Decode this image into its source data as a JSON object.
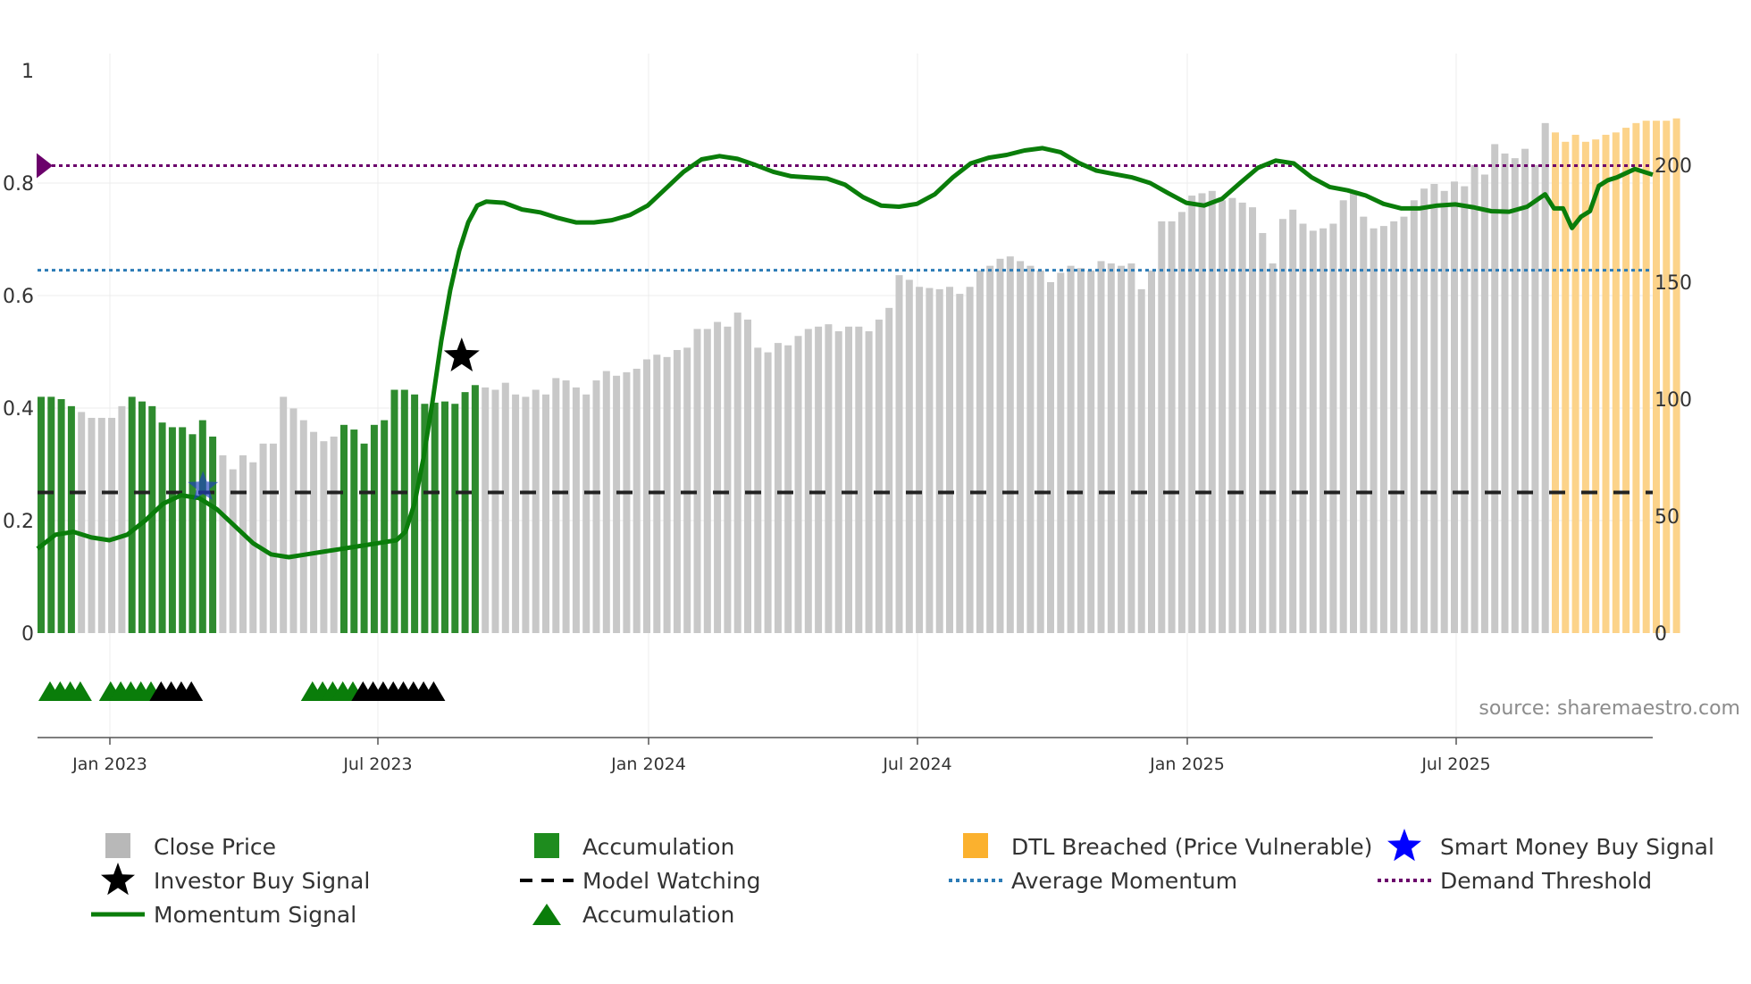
{
  "chart_data": {
    "type": "bar",
    "y_left": {
      "range": [
        0,
        1
      ],
      "ticks": [
        "0",
        "0.2",
        "0.4",
        "0.6",
        "0.8",
        "1"
      ]
    },
    "y_right": {
      "range": [
        0,
        240
      ],
      "ticks": [
        "0",
        "50",
        "100",
        "150",
        "200"
      ]
    },
    "x_dates": [
      "Jan 2023",
      "Jul 2023",
      "Jan 2024",
      "Jul 2024",
      "Jan 2025",
      "Jul 2025"
    ],
    "weeks": 163,
    "first_week": "2022-11-14",
    "price_series": [
      [
        0,
        101
      ],
      [
        1,
        101
      ],
      [
        2,
        100
      ],
      [
        3,
        97
      ],
      [
        5,
        92
      ],
      [
        7,
        92
      ],
      [
        8,
        97
      ],
      [
        9,
        101
      ],
      [
        10,
        99
      ],
      [
        11,
        97
      ],
      [
        12,
        90
      ],
      [
        13,
        88
      ],
      [
        14,
        88
      ],
      [
        15,
        85
      ],
      [
        16,
        91
      ],
      [
        17,
        84
      ],
      [
        18,
        76
      ],
      [
        19,
        70
      ],
      [
        20,
        76
      ],
      [
        21,
        73
      ],
      [
        22,
        81
      ],
      [
        23,
        81
      ],
      [
        24,
        101
      ],
      [
        26,
        91
      ],
      [
        27,
        86
      ],
      [
        28,
        82
      ],
      [
        29,
        84
      ],
      [
        30,
        89
      ],
      [
        31,
        87
      ],
      [
        32,
        81
      ],
      [
        33,
        89
      ],
      [
        34,
        91
      ],
      [
        35,
        104
      ],
      [
        36,
        104
      ],
      [
        37,
        102
      ],
      [
        38,
        98
      ],
      [
        40,
        99
      ],
      [
        41,
        98
      ],
      [
        42,
        103
      ],
      [
        43,
        106
      ],
      [
        45,
        104
      ],
      [
        46,
        107
      ],
      [
        47,
        102
      ],
      [
        48,
        101
      ],
      [
        49,
        104
      ],
      [
        50,
        102
      ],
      [
        51,
        109
      ],
      [
        52,
        108
      ],
      [
        54,
        102
      ],
      [
        55,
        108
      ],
      [
        56,
        112
      ],
      [
        57,
        110
      ],
      [
        59,
        113
      ],
      [
        60,
        117
      ],
      [
        61,
        119
      ],
      [
        62,
        118
      ],
      [
        63,
        121
      ],
      [
        64,
        122
      ],
      [
        65,
        130
      ],
      [
        66,
        130
      ],
      [
        67,
        133
      ],
      [
        68,
        131
      ],
      [
        69,
        137
      ],
      [
        70,
        134
      ],
      [
        71,
        122
      ],
      [
        72,
        120
      ],
      [
        73,
        124
      ],
      [
        74,
        123
      ],
      [
        75,
        127
      ],
      [
        76,
        130
      ],
      [
        77,
        131
      ],
      [
        78,
        132
      ],
      [
        79,
        129
      ],
      [
        80,
        131
      ],
      [
        81,
        131
      ],
      [
        82,
        129
      ],
      [
        83,
        134
      ],
      [
        84,
        139
      ],
      [
        85,
        153
      ],
      [
        86,
        151
      ],
      [
        87,
        148
      ],
      [
        89,
        147
      ],
      [
        90,
        148
      ],
      [
        91,
        145
      ],
      [
        92,
        148
      ],
      [
        93,
        155
      ],
      [
        94,
        157
      ],
      [
        95,
        160
      ],
      [
        96,
        161
      ],
      [
        97,
        159
      ],
      [
        98,
        157
      ],
      [
        99,
        155
      ],
      [
        100,
        150
      ],
      [
        101,
        154
      ],
      [
        102,
        157
      ],
      [
        103,
        156
      ],
      [
        104,
        155
      ],
      [
        105,
        159
      ],
      [
        106,
        158
      ],
      [
        107,
        157
      ],
      [
        108,
        158
      ],
      [
        109,
        147
      ],
      [
        110,
        155
      ],
      [
        111,
        176
      ],
      [
        112,
        176
      ],
      [
        113,
        180
      ],
      [
        114,
        187
      ],
      [
        115,
        188
      ],
      [
        116,
        189
      ],
      [
        117,
        185
      ],
      [
        118,
        186
      ],
      [
        119,
        184
      ],
      [
        120,
        182
      ],
      [
        121,
        171
      ],
      [
        122,
        158
      ],
      [
        123,
        177
      ],
      [
        124,
        181
      ],
      [
        125,
        175
      ],
      [
        126,
        172
      ],
      [
        127,
        173
      ],
      [
        128,
        175
      ],
      [
        129,
        185
      ],
      [
        130,
        188
      ],
      [
        131,
        178
      ],
      [
        132,
        173
      ],
      [
        133,
        174
      ],
      [
        134,
        176
      ],
      [
        135,
        178
      ],
      [
        136,
        185
      ],
      [
        137,
        190
      ],
      [
        138,
        192
      ],
      [
        139,
        189
      ],
      [
        140,
        193
      ],
      [
        141,
        191
      ],
      [
        142,
        200
      ],
      [
        143,
        196
      ],
      [
        144,
        209
      ],
      [
        145,
        205
      ],
      [
        146,
        203
      ],
      [
        147,
        207
      ],
      [
        148,
        200
      ],
      [
        149,
        218
      ],
      [
        150,
        214
      ],
      [
        151,
        210
      ],
      [
        152,
        213
      ],
      [
        153,
        210
      ],
      [
        154,
        211
      ],
      [
        155,
        213
      ],
      [
        156,
        214
      ],
      [
        157,
        216
      ],
      [
        158,
        218
      ],
      [
        159,
        219
      ],
      [
        160,
        219
      ],
      [
        161,
        219
      ],
      [
        162,
        220
      ]
    ],
    "green_week_ranges": [
      [
        0,
        3
      ],
      [
        9,
        17
      ],
      [
        30,
        43
      ]
    ],
    "orange_week_range": [
      150,
      162
    ],
    "momentum_series": [
      [
        0,
        0.15
      ],
      [
        2,
        0.175
      ],
      [
        4,
        0.18
      ],
      [
        6,
        0.17
      ],
      [
        8,
        0.165
      ],
      [
        10,
        0.175
      ],
      [
        12,
        0.2
      ],
      [
        14,
        0.23
      ],
      [
        16,
        0.245
      ],
      [
        18,
        0.24
      ],
      [
        20,
        0.22
      ],
      [
        22,
        0.19
      ],
      [
        24,
        0.16
      ],
      [
        26,
        0.14
      ],
      [
        28,
        0.135
      ],
      [
        30,
        0.14
      ],
      [
        32,
        0.145
      ],
      [
        34,
        0.15
      ],
      [
        36,
        0.155
      ],
      [
        38,
        0.16
      ],
      [
        40,
        0.165
      ],
      [
        41,
        0.18
      ],
      [
        42,
        0.23
      ],
      [
        43,
        0.31
      ],
      [
        44,
        0.41
      ],
      [
        45,
        0.52
      ],
      [
        46,
        0.61
      ],
      [
        47,
        0.68
      ],
      [
        48,
        0.73
      ],
      [
        49,
        0.76
      ],
      [
        50,
        0.767
      ],
      [
        52,
        0.765
      ],
      [
        54,
        0.753
      ],
      [
        56,
        0.748
      ],
      [
        58,
        0.738
      ],
      [
        60,
        0.73
      ],
      [
        62,
        0.73
      ],
      [
        64,
        0.734
      ],
      [
        66,
        0.743
      ],
      [
        68,
        0.76
      ],
      [
        70,
        0.79
      ],
      [
        72,
        0.82
      ],
      [
        74,
        0.842
      ],
      [
        76,
        0.848
      ],
      [
        78,
        0.843
      ],
      [
        80,
        0.832
      ],
      [
        82,
        0.82
      ],
      [
        84,
        0.812
      ],
      [
        86,
        0.81
      ],
      [
        88,
        0.808
      ],
      [
        90,
        0.797
      ],
      [
        92,
        0.775
      ],
      [
        94,
        0.76
      ],
      [
        96,
        0.758
      ],
      [
        98,
        0.763
      ],
      [
        100,
        0.78
      ],
      [
        102,
        0.81
      ],
      [
        104,
        0.835
      ],
      [
        106,
        0.845
      ],
      [
        108,
        0.85
      ],
      [
        110,
        0.858
      ],
      [
        112,
        0.862
      ],
      [
        114,
        0.855
      ],
      [
        116,
        0.836
      ],
      [
        118,
        0.822
      ],
      [
        120,
        0.816
      ],
      [
        122,
        0.81
      ],
      [
        124,
        0.8
      ],
      [
        126,
        0.782
      ],
      [
        128,
        0.765
      ],
      [
        130,
        0.76
      ],
      [
        132,
        0.772
      ],
      [
        134,
        0.8
      ],
      [
        136,
        0.827
      ],
      [
        138,
        0.84
      ],
      [
        140,
        0.835
      ],
      [
        142,
        0.81
      ],
      [
        144,
        0.793
      ],
      [
        146,
        0.787
      ],
      [
        148,
        0.778
      ],
      [
        150,
        0.763
      ],
      [
        152,
        0.755
      ],
      [
        154,
        0.755
      ],
      [
        156,
        0.76
      ],
      [
        158,
        0.762
      ],
      [
        160,
        0.757
      ],
      [
        162,
        0.75
      ],
      [
        164,
        0.749
      ],
      [
        166,
        0.758
      ],
      [
        168,
        0.78
      ],
      [
        169,
        0.755
      ],
      [
        170,
        0.755
      ],
      [
        171,
        0.72
      ],
      [
        172,
        0.74
      ],
      [
        173,
        0.75
      ],
      [
        174,
        0.795
      ],
      [
        175,
        0.805
      ],
      [
        176,
        0.81
      ],
      [
        178,
        0.825
      ],
      [
        180,
        0.815
      ]
    ],
    "average_momentum": 0.645,
    "demand_threshold": 0.831,
    "model_watching_level": 0.25,
    "smart_money_buy_signal": [
      14,
      0.25
    ],
    "investor_buy_signal": [
      46,
      0.5
    ],
    "signal_triangles": {
      "accumulation_green": [
        0,
        1,
        2,
        3,
        6,
        7,
        8,
        9,
        10,
        26,
        27,
        28,
        29,
        30
      ],
      "black": [
        11,
        12,
        13,
        14,
        31,
        32,
        33,
        34,
        35,
        36,
        37,
        38
      ]
    },
    "source": "source: sharemaestro.com",
    "legend": [
      {
        "label": "Close Price",
        "symbol": "square",
        "color": "#b8b8b8"
      },
      {
        "label": "Investor Buy Signal",
        "symbol": "star",
        "color": "#000000"
      },
      {
        "label": "Momentum Signal",
        "symbol": "line",
        "color": "#0a7d0a"
      },
      {
        "label": "Accumulation",
        "symbol": "square",
        "color": "#1e8c1e"
      },
      {
        "label": "Model Watching",
        "symbol": "dash",
        "color": "#000000"
      },
      {
        "label": "Accumulation",
        "symbol": "triangle",
        "color": "#0a7d0a"
      },
      {
        "label": "DTL Breached (Price Vulnerable)",
        "symbol": "square",
        "color": "#fbb12e"
      },
      {
        "label": "Average Momentum",
        "symbol": "dot",
        "color": "#2c7bb6"
      },
      {
        "label": "Smart Money Buy Signal",
        "symbol": "star",
        "color": "#0000ff"
      },
      {
        "label": "Demand Threshold",
        "symbol": "dot",
        "color": "#6b006b"
      }
    ],
    "colors": {
      "price": "#c8c8c8",
      "accumulation": "#2e8b2e",
      "dtl": "#fcd38a",
      "momentum": "#0a7d0a",
      "average": "#2c7bb6",
      "threshold": "#6b006b",
      "watching": "#222222",
      "smart_money": "#1f3fbf"
    }
  }
}
